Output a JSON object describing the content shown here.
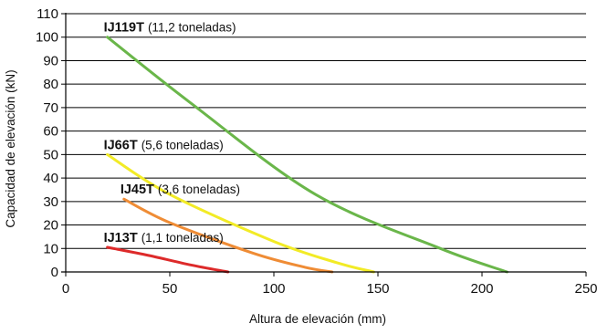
{
  "chart_data": {
    "type": "line",
    "xlabel": "Altura de elevación (mm)",
    "ylabel": "Capacidad de elevación (kN)",
    "xlim": [
      0,
      250
    ],
    "ylim": [
      0,
      110
    ],
    "x_ticks": [
      0,
      50,
      100,
      150,
      200,
      250
    ],
    "y_ticks": [
      0,
      10,
      20,
      30,
      40,
      50,
      60,
      70,
      80,
      90,
      100,
      110
    ],
    "grid": "horizontal",
    "legend": "inline labels above each curve",
    "series": [
      {
        "name": "IJ119T",
        "note": "(11,2 toneladas)",
        "color": "#6ab64a",
        "x": [
          20,
          60,
          120,
          180,
          212
        ],
        "y": [
          100,
          72,
          33,
          10,
          0
        ]
      },
      {
        "name": "IJ66T",
        "note": "(5,6 toneladas)",
        "color": "#f2eb26",
        "x": [
          20,
          50,
          100,
          130,
          148
        ],
        "y": [
          50,
          33,
          13,
          4,
          0
        ]
      },
      {
        "name": "IJ45T",
        "note": "(3,6 toneladas)",
        "color": "#ef8c35",
        "x": [
          28,
          50,
          90,
          115,
          128
        ],
        "y": [
          31,
          21,
          8,
          2,
          0
        ]
      },
      {
        "name": "IJ13T",
        "note": "(1,1 toneladas)",
        "color": "#dd2a2a",
        "x": [
          20,
          40,
          60,
          78
        ],
        "y": [
          10.5,
          7,
          3,
          0
        ]
      }
    ]
  }
}
